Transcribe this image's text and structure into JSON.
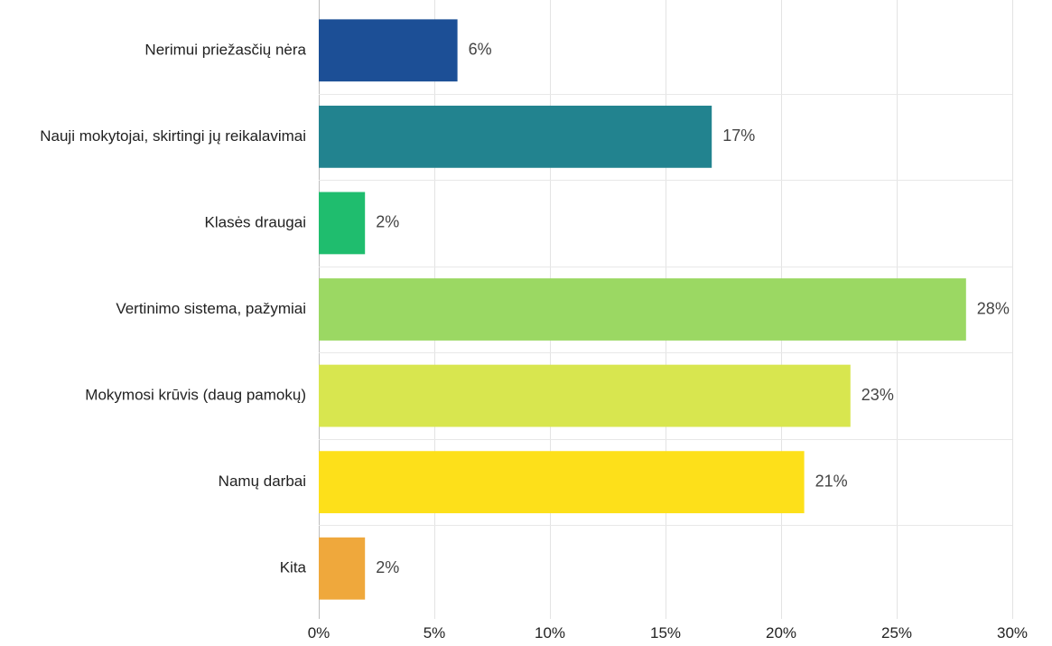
{
  "chart_data": {
    "type": "bar",
    "orientation": "horizontal",
    "categories": [
      "Nerimui priežasčių nėra",
      "Nauji mokytojai, skirtingi jų reikalavimai",
      "Klasės draugai",
      "Vertinimo sistema, pažymiai",
      "Mokymosi krūvis (daug pamokų)",
      "Namų darbai",
      "Kita"
    ],
    "values": [
      6,
      17,
      2,
      28,
      23,
      21,
      2
    ],
    "value_labels": [
      "6%",
      "17%",
      "2%",
      "28%",
      "23%",
      "21%",
      "2%"
    ],
    "colors": [
      "#1c4f96",
      "#22838f",
      "#1fbd6e",
      "#9bd863",
      "#d8e64f",
      "#fde01a",
      "#efa83c"
    ],
    "xlim": [
      0,
      30
    ],
    "xticks": [
      0,
      5,
      10,
      15,
      20,
      25,
      30
    ],
    "xtick_labels": [
      "0%",
      "5%",
      "10%",
      "15%",
      "20%",
      "25%",
      "30%"
    ],
    "grid": true,
    "title": "",
    "xlabel": "",
    "ylabel": ""
  }
}
